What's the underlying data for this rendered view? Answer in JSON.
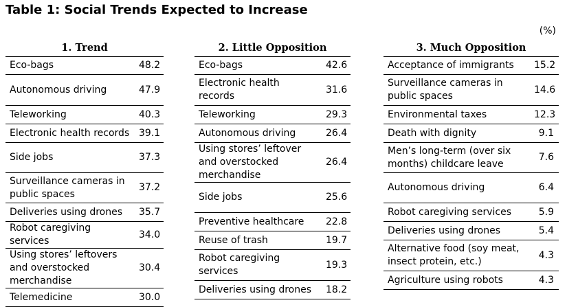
{
  "title": "Table 1: Social Trends Expected to Increase",
  "unit": "(%)",
  "tables": [
    {
      "header": "1. Trend",
      "rows": [
        {
          "label": "Eco-bags",
          "value": "48.2"
        },
        {
          "label": "Autonomous driving",
          "value": "47.9"
        },
        {
          "label": "Teleworking",
          "value": "40.3"
        },
        {
          "label": "Electronic health records",
          "value": "39.1"
        },
        {
          "label": "Side jobs",
          "value": "37.3"
        },
        {
          "label": "Surveillance cameras in public spaces",
          "value": "37.2"
        },
        {
          "label": "Deliveries using drones",
          "value": "35.7"
        },
        {
          "label": "Robot caregiving services",
          "value": "34.0"
        },
        {
          "label": "Using stores’ leftovers and overstocked merchandise",
          "value": "30.4"
        },
        {
          "label": "Telemedicine",
          "value": "30.0"
        }
      ]
    },
    {
      "header": "2. Little Opposition",
      "rows": [
        {
          "label": "Eco-bags",
          "value": "42.6"
        },
        {
          "label": "Electronic health records",
          "value": "31.6"
        },
        {
          "label": "Teleworking",
          "value": "29.3"
        },
        {
          "label": "Autonomous driving",
          "value": "26.4"
        },
        {
          "label": "Using stores’ leftover and overstocked merchandise",
          "value": "26.4"
        },
        {
          "label": "Side jobs",
          "value": "25.6"
        },
        {
          "label": "Preventive healthcare",
          "value": "22.8"
        },
        {
          "label": "Reuse of trash",
          "value": "19.7"
        },
        {
          "label": "Robot caregiving services",
          "value": "19.3"
        },
        {
          "label": "Deliveries using drones",
          "value": "18.2"
        }
      ]
    },
    {
      "header": "3. Much Opposition",
      "rows": [
        {
          "label": "Acceptance of immigrants",
          "value": "15.2"
        },
        {
          "label": "Surveillance cameras in public spaces",
          "value": "14.6"
        },
        {
          "label": "Environmental taxes",
          "value": "12.3"
        },
        {
          "label": "Death with dignity",
          "value": "9.1"
        },
        {
          "label": "Men’s long-term (over six months) childcare leave",
          "value": "7.6"
        },
        {
          "label": "Autonomous driving",
          "value": "6.4"
        },
        {
          "label": "Robot caregiving services",
          "value": "5.9"
        },
        {
          "label": "Deliveries using drones",
          "value": "5.4"
        },
        {
          "label": "Alternative food (soy meat, insect protein, etc.)",
          "value": "4.3"
        },
        {
          "label": "Agriculture using robots",
          "value": "4.3"
        }
      ]
    }
  ]
}
